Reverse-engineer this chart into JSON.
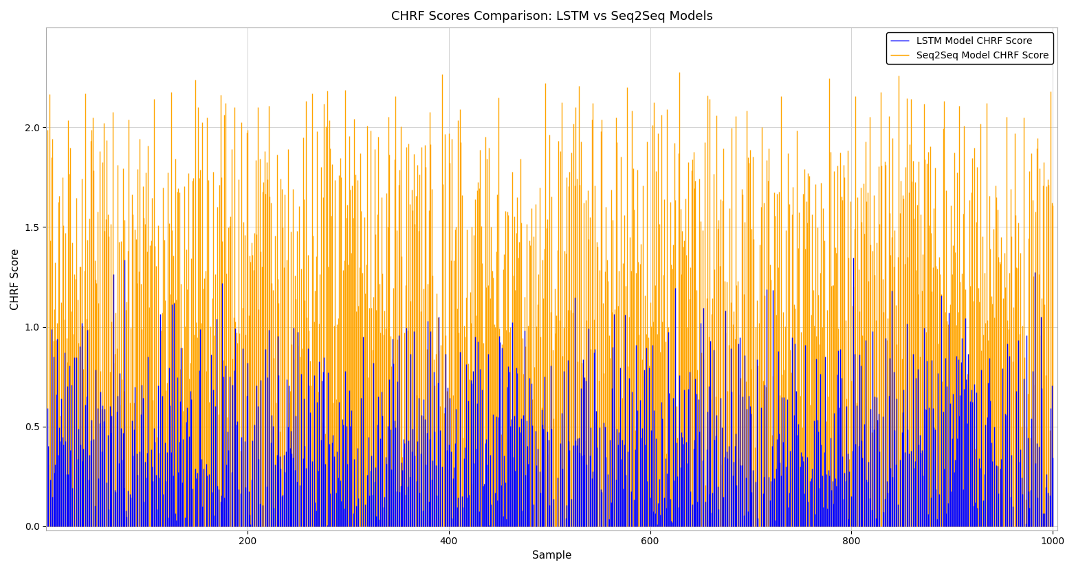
{
  "title": "CHRF Scores Comparison: LSTM vs Seq2Seq Models",
  "xlabel": "Sample",
  "ylabel": "CHRF Score",
  "legend_lstm": "LSTM Model CHRF Score",
  "legend_seq2seq": "Seq2Seq Model CHRF Score",
  "lstm_color": "#0000FF",
  "seq2seq_color": "#FFA500",
  "ylim_min": -0.02,
  "ylim_max": 2.5,
  "xlim_min": 0,
  "xlim_max": 1005,
  "lstm_linewidth": 1.0,
  "seq2seq_linewidth": 1.0,
  "grid": true,
  "title_fontsize": 13,
  "axis_label_fontsize": 11,
  "tick_fontsize": 10,
  "legend_fontsize": 10,
  "xticks": [
    200,
    400,
    600,
    800,
    1000
  ],
  "yticks": [
    0.0,
    0.5,
    1.0,
    1.5,
    2.0
  ],
  "fig_width": 15.65,
  "fig_height": 8.31,
  "bg_color": "#ffffff"
}
